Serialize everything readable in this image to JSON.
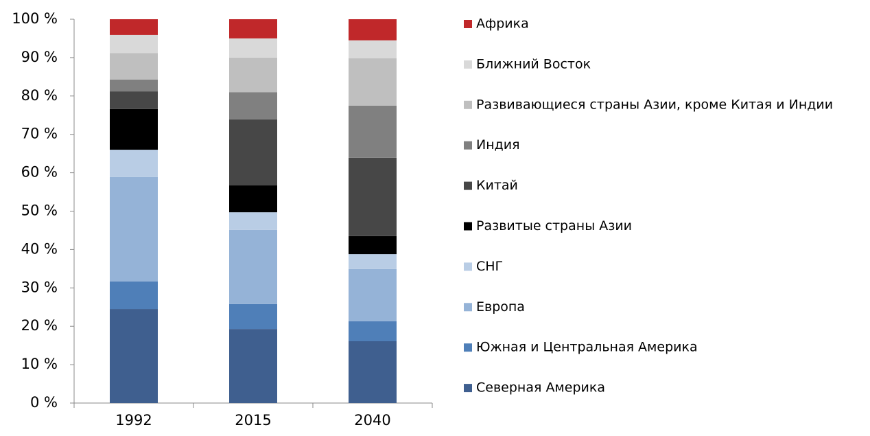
{
  "chart_data": {
    "type": "stacked_bar",
    "categories": [
      "1992",
      "2015",
      "2040"
    ],
    "series": [
      {
        "name": "Северная Америка",
        "color": "#3f5f8f",
        "values": [
          24.5,
          19.3,
          16.1
        ]
      },
      {
        "name": "Южная и Центральная Америка",
        "color": "#4f7fb8",
        "values": [
          7.2,
          6.5,
          5.2
        ]
      },
      {
        "name": "Европа",
        "color": "#95b3d7",
        "values": [
          27.2,
          19.3,
          13.6
        ]
      },
      {
        "name": "СНГ",
        "color": "#b9cde5",
        "values": [
          7.1,
          4.6,
          3.9
        ]
      },
      {
        "name": "Развитые страны Азии",
        "color": "#000000",
        "values": [
          10.6,
          7.0,
          4.7
        ]
      },
      {
        "name": "Китай",
        "color": "#474747",
        "values": [
          4.6,
          17.2,
          20.4
        ]
      },
      {
        "name": "Индия",
        "color": "#808080",
        "values": [
          3.1,
          7.1,
          13.6
        ]
      },
      {
        "name": "Развивающиеся страны Азии, кроме Китая и Индии",
        "color": "#bfbfbf",
        "values": [
          6.9,
          9.0,
          12.3
        ]
      },
      {
        "name": "Ближний Восток",
        "color": "#d9d9d9",
        "values": [
          4.7,
          5.0,
          4.7
        ]
      },
      {
        "name": "Африка",
        "color": "#c0282a",
        "values": [
          4.1,
          5.0,
          5.5
        ]
      }
    ],
    "ylim": [
      0,
      100
    ],
    "yticks": [
      {
        "value": 0,
        "label": "0 %"
      },
      {
        "value": 10,
        "label": "10 %"
      },
      {
        "value": 20,
        "label": "20 %"
      },
      {
        "value": 30,
        "label": "30 %"
      },
      {
        "value": 40,
        "label": "40 %"
      },
      {
        "value": 50,
        "label": "50 %"
      },
      {
        "value": 60,
        "label": "60 %"
      },
      {
        "value": 70,
        "label": "70 %"
      },
      {
        "value": 80,
        "label": "80 %"
      },
      {
        "value": 90,
        "label": "90 %"
      },
      {
        "value": 100,
        "label": "100 %"
      }
    ],
    "legend": "right"
  }
}
